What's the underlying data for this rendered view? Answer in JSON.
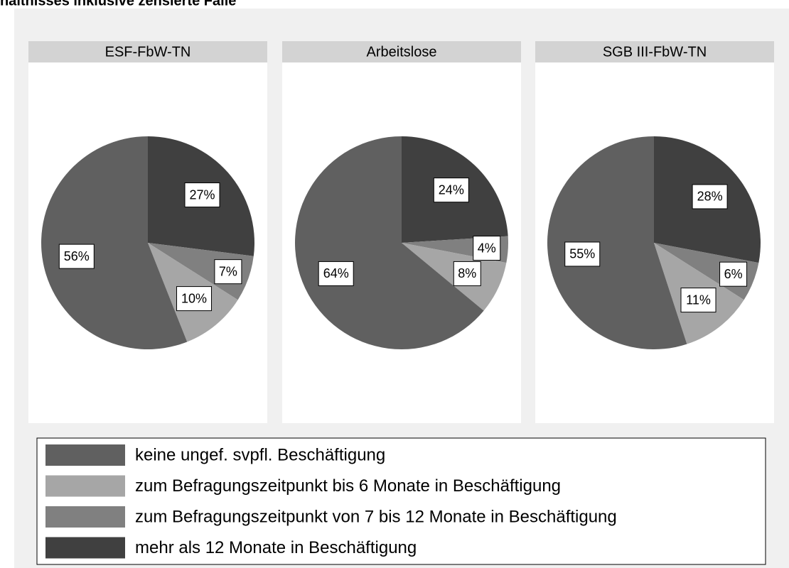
{
  "title": "hältnisses inklusive zensierte Fälle",
  "legend": {
    "labels": [
      "keine ungef. svpfl. Beschäftigung",
      "zum Befragungszeitpunkt bis 6 Monate in Beschäftigung",
      "zum Befragungszeitpunkt von 7 bis 12 Monate in Beschäftigung",
      "mehr als 12 Monate in Beschäftigung"
    ],
    "colors": [
      "#606060",
      "#a6a6a6",
      "#808080",
      "#404040"
    ]
  },
  "chart_data": [
    {
      "type": "pie",
      "title": "ESF-FbW-TN",
      "values": [
        56,
        10,
        7,
        27
      ],
      "value_labels": [
        "56%",
        "10%",
        "7%",
        "27%"
      ]
    },
    {
      "type": "pie",
      "title": "Arbeitslose",
      "values": [
        64,
        8,
        4,
        24
      ],
      "value_labels": [
        "64%",
        "8%",
        "4%",
        "24%"
      ]
    },
    {
      "type": "pie",
      "title": "SGB III-FbW-TN",
      "values": [
        55,
        11,
        6,
        28
      ],
      "value_labels": [
        "55%",
        "11%",
        "6%",
        "28%"
      ]
    }
  ]
}
